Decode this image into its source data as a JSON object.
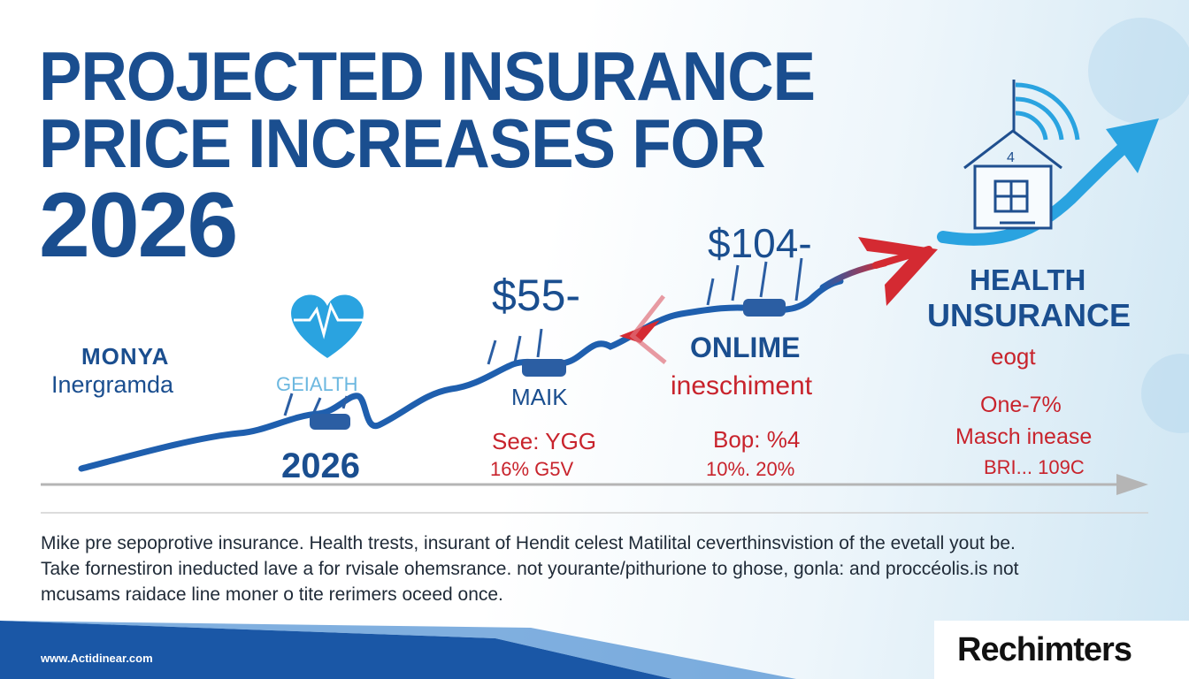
{
  "title": {
    "line1": "PROJECTED INSURANCE",
    "line2": "PRICE INCREASES FOR",
    "line3": "2026"
  },
  "labels": {
    "left_brand_1": "MONYA",
    "left_brand_2": "Inergramda",
    "health_small": "GEIALTH",
    "year": "2026",
    "price_1": "$55-",
    "mark": "MAIK",
    "see": "See: YGG",
    "see_sub": "16% G5V",
    "price_2": "$104-",
    "online": "ONLIME",
    "inesch": "ineschiment",
    "bop": "Bop: %4",
    "bop_sub": "10%. 20%",
    "health_ins_1": "HEALTH",
    "health_ins_2": "UNSURANCE",
    "health_ins_3": "eogt",
    "one": "One-7%",
    "masch": "Masch inease",
    "bri": "BRI... 109C"
  },
  "body": {
    "line1": "Mike pre sepoprotive insurance. Health trests, insurant of Hendit celest Matilital ceverthinsvistion of the evetall yout be.",
    "line2": "Take fornestiron ineducted lave a for rvisale ohemsrance. not yourante/pithurione to ghose, gonla: and proccéolis.is not",
    "line3": "mcusams raidace line moner o tite rerimers oceed once."
  },
  "footer": {
    "url": "www.Actidinear.com",
    "brand": "Rechimters"
  },
  "colors": {
    "title_blue": "#1a4e8f",
    "line_blue": "#1f5fae",
    "accent_red": "#d42a32",
    "sky_blue": "#2aa3e0"
  },
  "icons": [
    "heart-pulse-icon",
    "house-icon",
    "wifi-signal-icon",
    "trend-arrow-icon",
    "car-icon"
  ]
}
